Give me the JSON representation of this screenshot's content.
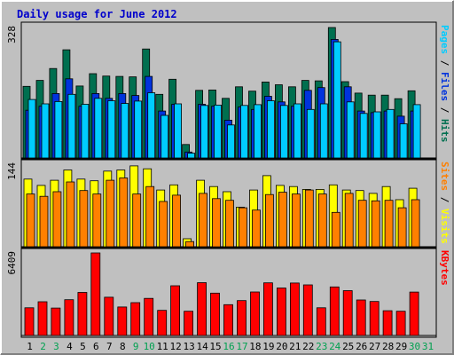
{
  "chart_data": {
    "type": "bar",
    "title": "Daily usage for June 2012",
    "colors": {
      "title": "#0000cc",
      "background": "#c0c0c0",
      "hits": "#006f4f",
      "files": "#0033dd",
      "pages": "#00ccff",
      "visits": "#ffff00",
      "sites": "#ff8000",
      "kbytes": "#ff0000",
      "weekend_label": "#00a050"
    },
    "x": [
      "1",
      "2",
      "3",
      "4",
      "5",
      "6",
      "7",
      "8",
      "9",
      "10",
      "11",
      "12",
      "13",
      "14",
      "15",
      "16",
      "17",
      "18",
      "19",
      "20",
      "21",
      "22",
      "23",
      "24",
      "25",
      "26",
      "27",
      "28",
      "29",
      "30",
      "31"
    ],
    "weekend_days": [
      "2",
      "3",
      "9",
      "10",
      "16",
      "17",
      "23",
      "24",
      "30",
      "31"
    ],
    "panels": [
      {
        "id": "traffic",
        "ylabel_parts": [
          {
            "text": "Pages",
            "color_key": "pages"
          },
          {
            "text": " / ",
            "color_key": "sep"
          },
          {
            "text": "Files",
            "color_key": "files"
          },
          {
            "text": " / ",
            "color_key": "sep"
          },
          {
            "text": "Hits",
            "color_key": "hits"
          }
        ],
        "ymax_label": "328",
        "ymax": 328,
        "series": [
          {
            "name": "Hits",
            "color_key": "hits",
            "values": [
              180,
              195,
              225,
              272,
              181,
              212,
              206,
              205,
              204,
              274,
              160,
              198,
              34,
              170,
              171,
              150,
              179,
              168,
              191,
              184,
              179,
              195,
              194,
              328,
              192,
              163,
              158,
              158,
              149,
              169,
              0
            ]
          },
          {
            "name": "Files",
            "color_key": "files",
            "values": [
              120,
              130,
              162,
              199,
              130,
              162,
              150,
              162,
              157,
              205,
              118,
              135,
              15,
              135,
              130,
              95,
              128,
              122,
              155,
              141,
              130,
              170,
              177,
              298,
              179,
              118,
              114,
              118,
              105,
              118,
              0
            ]
          },
          {
            "name": "Pages",
            "color_key": "pages",
            "values": [
              147,
              136,
              142,
              160,
              135,
              150,
              144,
              137,
              143,
              164,
              107,
              136,
              12,
              132,
              133,
              83,
              132,
              134,
              144,
              132,
              136,
              122,
              136,
              292,
              141,
              112,
              116,
              122,
              86,
              134,
              0
            ]
          }
        ]
      },
      {
        "id": "visitors",
        "ylabel_parts": [
          {
            "text": "Sites",
            "color_key": "sites"
          },
          {
            "text": " / ",
            "color_key": "sep"
          },
          {
            "text": "Visits",
            "color_key": "visits"
          }
        ],
        "ymax_label": "144",
        "ymax": 144,
        "series": [
          {
            "name": "Visits",
            "color_key": "visits",
            "values": [
              118,
              107,
              116,
              134,
              118,
              115,
              132,
              134,
              141,
              136,
              99,
              108,
              14,
              116,
              105,
              96,
              69,
              99,
              124,
              107,
              105,
              100,
              100,
              108,
              99,
              98,
              93,
              105,
              82,
              102,
              0
            ]
          },
          {
            "name": "Sites",
            "color_key": "sites",
            "values": [
              92,
              88,
              96,
              113,
              98,
              92,
              116,
              120,
              92,
              105,
              79,
              90,
              9,
              93,
              84,
              81,
              68,
              64,
              91,
              95,
              92,
              99,
              92,
              60,
              93,
              81,
              80,
              81,
              68,
              82,
              0
            ]
          }
        ]
      },
      {
        "id": "volume",
        "ylabel_parts": [
          {
            "text": "KBytes",
            "color_key": "kbytes"
          }
        ],
        "ymax_label": "6409",
        "ymax": 6409,
        "series": [
          {
            "name": "KBytes",
            "color_key": "kbytes",
            "values": [
              2150,
              2620,
              2130,
              2780,
              3340,
              6409,
              2970,
              2210,
              2550,
              2880,
              1950,
              3860,
              1880,
              4100,
              3290,
              2390,
              2710,
              3380,
              4090,
              3690,
              4070,
              3930,
              2150,
              3770,
              3480,
              2760,
              2640,
              1920,
              1880,
              3370,
              0
            ]
          }
        ]
      }
    ]
  }
}
